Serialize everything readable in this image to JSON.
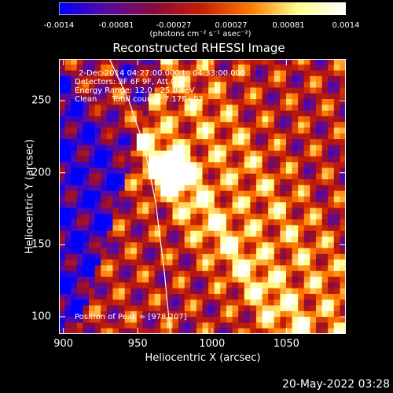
{
  "colorbar": {
    "ticks": [
      "-0.0014",
      "-0.00081",
      "-0.00027",
      "0.00027",
      "0.00081",
      "0.0014"
    ],
    "units": "(photons cm⁻² s⁻¹ asec⁻²)",
    "colors": [
      "#0000ff",
      "#5a0aa0",
      "#8a0a40",
      "#c81e00",
      "#ff7a00",
      "#ffff8c",
      "#ffffff"
    ]
  },
  "info": {
    "line1": "2-Dec-2014 04:27:00.000 to 04:33:00.000",
    "line2": "Detectors: 3F 6F 9F, Att 0",
    "line3": "Energy Range: 12.0 - 25.0 keV",
    "line4": "Clean      Total counts: 7.17E+03",
    "peak": "Position of Peak = [978,207]"
  },
  "timestamp": "20-May-2022 03:28",
  "chart_data": {
    "type": "heatmap",
    "title": "Reconstructed RHESSI Image",
    "xlabel": "Heliocentric X (arcsec)",
    "ylabel": "Heliocentric Y (arcsec)",
    "xlim": [
      897,
      1090
    ],
    "ylim": [
      88,
      279
    ],
    "xticks": [
      "900",
      "950",
      "1000",
      "1050"
    ],
    "yticks": [
      "100",
      "150",
      "200",
      "250"
    ],
    "zlim": [
      -0.0014,
      0.0014
    ],
    "peak": [
      978,
      207
    ],
    "limb_curve": [
      [
        931,
        279
      ],
      [
        944,
        250
      ],
      [
        954,
        220
      ],
      [
        962,
        180
      ],
      [
        968,
        130
      ],
      [
        972,
        88
      ]
    ]
  }
}
